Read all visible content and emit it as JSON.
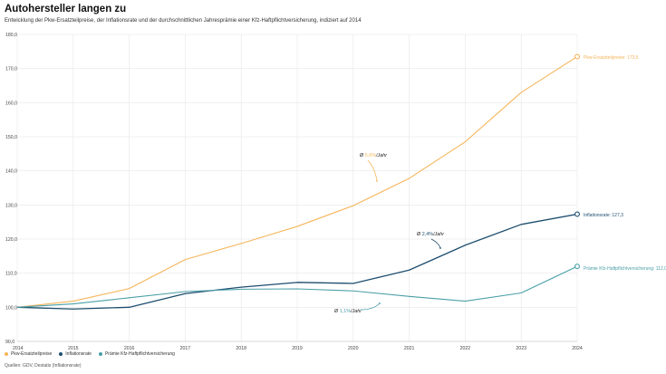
{
  "header": {
    "title": "Autohersteller langen zu",
    "subtitle": "Entwicklung der Pkw-Ersatzteilpreise, der Inflationsrate und der durchschnittlichen Jahresprämie einer Kfz-Haftpflichtversicherung, indiziert auf 2014"
  },
  "footer": {
    "source": "Quellen: GDV, Destatis (Inflationsrate)"
  },
  "chart_data": {
    "type": "line",
    "title": "Autohersteller langen zu",
    "subtitle": "Entwicklung der Pkw-Ersatzteilpreise, der Inflationsrate und der durchschnittlichen Jahresprämie einer Kfz-Haftpflichtversicherung, indiziert auf 2014",
    "x": [
      "2014",
      "2015",
      "2016",
      "2017",
      "2018",
      "2019",
      "2020",
      "2021",
      "2022",
      "2023",
      "2024"
    ],
    "ylim": [
      90,
      180
    ],
    "yticks": [
      "90,0",
      "100,0",
      "110,0",
      "120,0",
      "130,0",
      "140,0",
      "150,0",
      "160,0",
      "170,0",
      "180,0"
    ],
    "ytick_values": [
      90,
      100,
      110,
      120,
      130,
      140,
      150,
      160,
      170,
      180
    ],
    "grid": true,
    "legend_position": "bottom-left",
    "series": [
      {
        "name": "Pkw-Ersatzteilpreise",
        "color": "#f5b55a",
        "values": [
          100.0,
          101.8,
          105.5,
          114.0,
          118.7,
          123.7,
          129.8,
          137.8,
          148.5,
          163.0,
          173.5
        ],
        "end_label": "Pkw-Ersatzteilpreise: 173,5"
      },
      {
        "name": "Inflationsrate",
        "color": "#1e4e6e",
        "values": [
          100.0,
          99.5,
          100.0,
          104.0,
          105.9,
          107.3,
          107.0,
          110.9,
          118.2,
          124.3,
          127.3
        ],
        "end_label": "Inflationsrate: 127,3"
      },
      {
        "name": "Prämie Kfz-Haftpflichtversicherung",
        "color": "#4a9fa8",
        "values": [
          100.0,
          101.0,
          102.8,
          104.6,
          105.3,
          105.4,
          104.8,
          103.2,
          101.8,
          104.2,
          112.0
        ],
        "end_label": "Prämie Kfz-Haftpflichtversicherung: 112,0"
      }
    ],
    "annotations": [
      {
        "prefix": "Ø ",
        "value": "5,6%",
        "suffix": "/Jahr",
        "color": "#f5b55a",
        "series": "Pkw-Ersatzteilpreise"
      },
      {
        "prefix": "Ø ",
        "value": "2,4%",
        "suffix": "/Jahr",
        "color": "#1e4e6e",
        "series": "Inflationsrate"
      },
      {
        "prefix": "Ø ",
        "value": "1,1%",
        "suffix": "/Jahr",
        "color": "#4a9fa8",
        "series": "Prämie Kfz-Haftpflichtversicherung"
      }
    ]
  }
}
